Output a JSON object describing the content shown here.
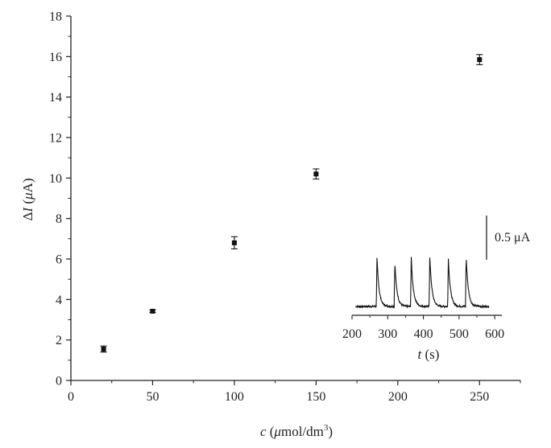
{
  "chart_data": [
    {
      "type": "scatter",
      "title": "",
      "xlabel": {
        "var": "c",
        "unit_pre": " (",
        "mu": "μ",
        "unit_mid": "mol/dm",
        "sup": "3",
        "unit_post": ")"
      },
      "ylabel": {
        "delta": "Δ",
        "var": "I",
        "unit_pre": " (",
        "mu": "μ",
        "unit_post": "A)"
      },
      "xlim": [
        0,
        275
      ],
      "ylim": [
        0,
        18
      ],
      "x_ticks": [
        0,
        50,
        100,
        150,
        200,
        250
      ],
      "y_ticks": [
        0,
        2,
        4,
        6,
        8,
        10,
        12,
        14,
        16,
        18
      ],
      "grid": false,
      "marker": "square",
      "series": [
        {
          "x": [
            20,
            50,
            100,
            150,
            250
          ],
          "y": [
            1.55,
            3.42,
            6.8,
            10.2,
            15.85
          ],
          "error": [
            0.15,
            0.06,
            0.3,
            0.25,
            0.25
          ]
        }
      ]
    },
    {
      "type": "line",
      "title": "",
      "xlabel": {
        "var": "t",
        "unit": " (s)"
      },
      "ylabel": "",
      "xlim": [
        200,
        620
      ],
      "x_ticks": [
        200,
        300,
        400,
        500,
        600
      ],
      "x_tick_labels": [
        "200",
        "300",
        "400",
        "500",
        "600"
      ],
      "scale_bar_label": "0.5 μA",
      "scale_bar_value": 0.5,
      "baseline": 0.0,
      "peaks": [
        {
          "t": 270,
          "height": 0.54
        },
        {
          "t": 320,
          "height": 0.5
        },
        {
          "t": 366,
          "height": 0.55
        },
        {
          "t": 418,
          "height": 0.56
        },
        {
          "t": 470,
          "height": 0.54
        },
        {
          "t": 520,
          "height": 0.56
        }
      ],
      "t_start": 210,
      "t_end": 585
    }
  ]
}
